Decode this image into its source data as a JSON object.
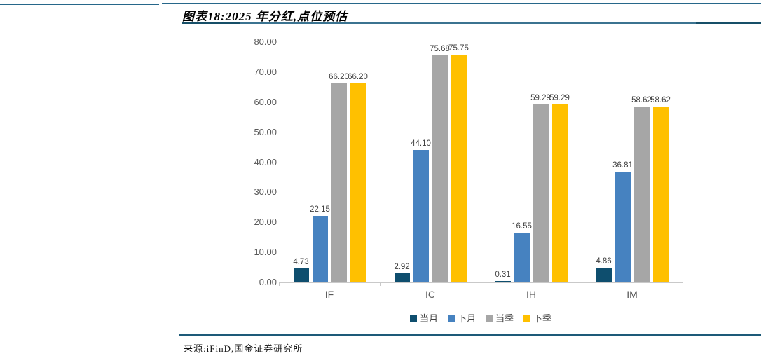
{
  "page": {
    "title": "图表18:2025 年分红,点位预估",
    "source": "来源:iFinD,国金证券研究所"
  },
  "colors": {
    "header_rule_teal": "#27678a",
    "header_rule_dark": "#174f68",
    "axis_line": "#c9c9c9",
    "axis_text": "#595959",
    "data_label_text": "#404040"
  },
  "chart_data": {
    "type": "bar",
    "categories": [
      "IF",
      "IC",
      "IH",
      "IM"
    ],
    "series": [
      {
        "name": "当月",
        "color": "#0e4e6e",
        "values": [
          4.73,
          2.92,
          0.31,
          4.86
        ]
      },
      {
        "name": "下月",
        "color": "#4682c0",
        "values": [
          22.15,
          44.1,
          16.55,
          36.81
        ]
      },
      {
        "name": "当季",
        "color": "#a6a6a6",
        "values": [
          66.2,
          75.68,
          59.29,
          58.62
        ]
      },
      {
        "name": "下季",
        "color": "#ffc000",
        "values": [
          66.2,
          75.75,
          59.29,
          58.62
        ]
      }
    ],
    "ylim": [
      0,
      80
    ],
    "ytick_labels": [
      "80.00",
      "70.00",
      "60.00",
      "50.00",
      "40.00",
      "30.00",
      "20.00",
      "10.00",
      "0.00"
    ],
    "value_label_format": "0.00",
    "grid": false,
    "legend_position": "bottom",
    "data_labels": true
  }
}
